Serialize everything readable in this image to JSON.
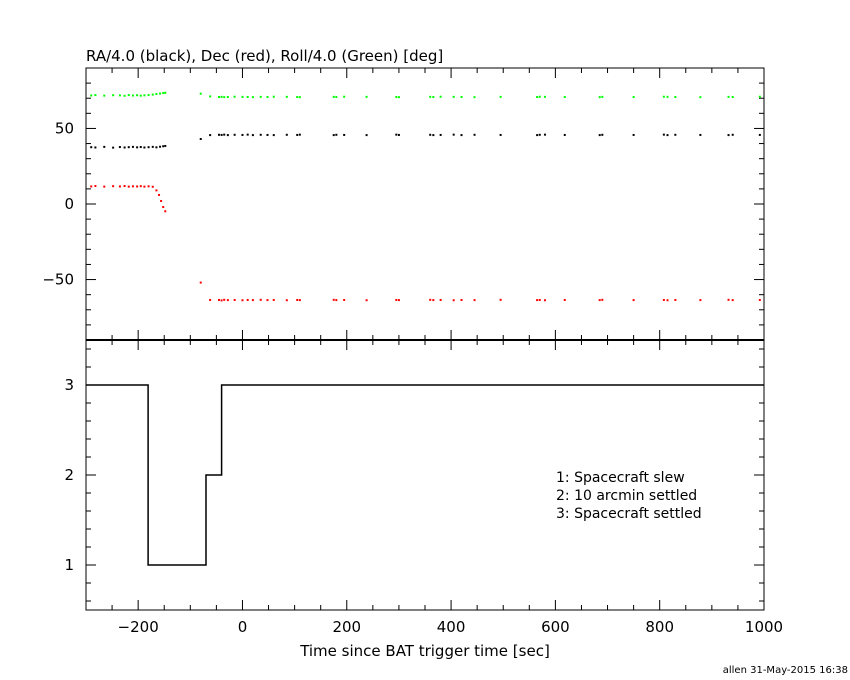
{
  "footer": "allen 31-May-2015 16:38",
  "chart_data": [
    {
      "type": "scatter",
      "title": "RA/4.0 (black), Dec (red), Roll/4.0 (Green) [deg]",
      "xlim": [
        -300,
        1000
      ],
      "ylim": [
        -90,
        90
      ],
      "yticks": [
        -50,
        0,
        50
      ],
      "xticks": [
        -200,
        0,
        200,
        400,
        600,
        800,
        1000
      ],
      "grid": false,
      "series": [
        {
          "name": "RA/4.0 (black)",
          "color": "#000000",
          "x": [
            -290,
            -282,
            -265,
            -248,
            -235,
            -226,
            -218,
            -210,
            -202,
            -195,
            -188,
            -180,
            -172,
            -165,
            -158,
            -152,
            -148,
            -80,
            -62,
            -45,
            -40,
            -35,
            -28,
            -15,
            0,
            10,
            20,
            35,
            48,
            60,
            85,
            105,
            110,
            175,
            180,
            195,
            238,
            295,
            300,
            360,
            366,
            380,
            405,
            420,
            445,
            495,
            565,
            570,
            580,
            618,
            685,
            690,
            750,
            808,
            815,
            830,
            878,
            932,
            940,
            992
          ],
          "y": [
            37.6,
            37.4,
            37.8,
            37.3,
            37.7,
            37.4,
            37.6,
            37.8,
            37.5,
            37.7,
            37.4,
            37.6,
            37.8,
            37.5,
            37.9,
            38.2,
            38.4,
            43,
            45.6,
            45.8,
            45.7,
            45.9,
            45.6,
            45.8,
            45.7,
            45.9,
            45.6,
            45.8,
            45.7,
            45.6,
            45.8,
            45.7,
            45.9,
            45.6,
            45.8,
            45.7,
            45.6,
            45.9,
            45.7,
            45.8,
            45.6,
            45.7,
            45.9,
            45.6,
            45.8,
            45.7,
            45.6,
            45.8,
            45.9,
            45.7,
            45.6,
            45.8,
            45.7,
            45.9,
            45.6,
            45.8,
            45.7,
            45.6,
            45.8,
            45.7
          ]
        },
        {
          "name": "Dec (red)",
          "color": "#ff0000",
          "x": [
            -290,
            -282,
            -265,
            -248,
            -235,
            -226,
            -218,
            -210,
            -202,
            -195,
            -188,
            -180,
            -172,
            -165,
            -160,
            -156,
            -152,
            -148,
            -80,
            -62,
            -45,
            -40,
            -35,
            -28,
            -15,
            0,
            10,
            20,
            35,
            48,
            60,
            85,
            105,
            110,
            175,
            180,
            195,
            238,
            295,
            300,
            360,
            366,
            380,
            405,
            420,
            445,
            495,
            565,
            570,
            580,
            618,
            685,
            690,
            750,
            808,
            815,
            830,
            878,
            932,
            940,
            992
          ],
          "y": [
            11.6,
            11.9,
            11.5,
            11.8,
            11.6,
            11.9,
            11.5,
            11.7,
            11.6,
            11.8,
            11.5,
            11.7,
            11.4,
            9,
            6,
            2,
            -2,
            -4.8,
            -52,
            -63.5,
            -63.5,
            -63.8,
            -63.4,
            -63.6,
            -63.5,
            -63.7,
            -63.5,
            -63.6,
            -63.4,
            -63.6,
            -63.5,
            -63.7,
            -63.5,
            -63.6,
            -63.4,
            -63.6,
            -63.5,
            -63.7,
            -63.5,
            -63.6,
            -63.4,
            -63.6,
            -63.5,
            -63.7,
            -63.5,
            -63.6,
            -63.4,
            -63.6,
            -63.5,
            -63.7,
            -63.5,
            -63.6,
            -63.4,
            -63.6,
            -63.5,
            -63.7,
            -63.5,
            -63.6,
            -63.4,
            -63.6,
            -63.5
          ]
        },
        {
          "name": "Roll/4.0 (Green)",
          "color": "#00ff00",
          "x": [
            -290,
            -282,
            -265,
            -248,
            -235,
            -226,
            -218,
            -210,
            -202,
            -195,
            -188,
            -180,
            -172,
            -165,
            -158,
            -152,
            -148,
            -80,
            -62,
            -45,
            -40,
            -35,
            -28,
            -15,
            0,
            10,
            20,
            35,
            48,
            60,
            85,
            105,
            110,
            175,
            180,
            195,
            238,
            295,
            300,
            360,
            366,
            380,
            405,
            420,
            445,
            495,
            565,
            570,
            580,
            618,
            685,
            690,
            750,
            808,
            815,
            830,
            878,
            932,
            940,
            992
          ],
          "y": [
            71.8,
            72.1,
            71.7,
            72,
            71.9,
            71.6,
            72.1,
            71.8,
            72,
            71.7,
            71.9,
            72.1,
            72.4,
            72.8,
            73.1,
            73.4,
            73.6,
            73,
            71.2,
            70.8,
            70.9,
            70.7,
            70.8,
            71,
            70.9,
            70.8,
            70.7,
            70.9,
            70.8,
            71,
            70.9,
            70.8,
            70.7,
            70.9,
            70.8,
            71,
            70.9,
            70.8,
            70.7,
            70.9,
            70.8,
            71,
            70.9,
            70.8,
            70.7,
            70.9,
            70.8,
            71,
            70.9,
            70.8,
            70.7,
            70.9,
            70.8,
            71,
            70.9,
            70.8,
            70.7,
            70.9,
            70.8,
            71
          ]
        }
      ]
    },
    {
      "type": "line",
      "xlabel": "Time since BAT trigger time [sec]",
      "xlim": [
        -300,
        1000
      ],
      "ylim": [
        0.5,
        3.5
      ],
      "yticks": [
        1,
        2,
        3
      ],
      "xticks": [
        -200,
        0,
        200,
        400,
        600,
        800,
        1000
      ],
      "xtick_labels": [
        "−200",
        "0",
        "200",
        "400",
        "600",
        "800",
        "1000"
      ],
      "grid": false,
      "annotations": [
        "1: Spacecraft slew",
        "2: 10 arcmin settled",
        "3: Spacecraft settled"
      ],
      "series": [
        {
          "color": "#000000",
          "x": [
            -300,
            -181,
            -181,
            -70,
            -70,
            -40,
            -40,
            1000
          ],
          "y": [
            3,
            3,
            1,
            1,
            2,
            2,
            3,
            3
          ]
        }
      ]
    }
  ]
}
